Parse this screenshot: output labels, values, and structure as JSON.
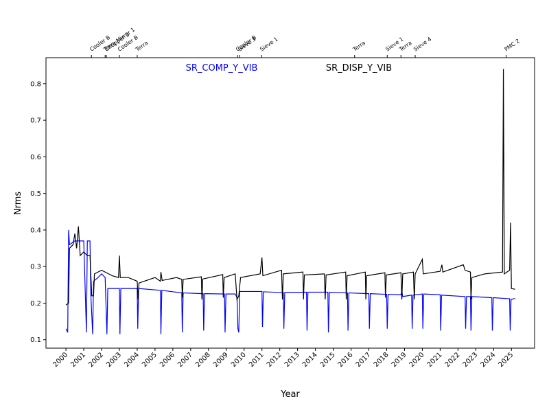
{
  "chart_data": {
    "type": "line",
    "xlabel": "Year",
    "ylabel": "Nrms",
    "xlim": [
      1998.88,
      2026.3
    ],
    "ylim": [
      0.077,
      0.871
    ],
    "xticks": [
      2000,
      2001,
      2002,
      2003,
      2004,
      2005,
      2006,
      2007,
      2008,
      2009,
      2010,
      2011,
      2012,
      2013,
      2014,
      2015,
      2016,
      2017,
      2018,
      2019,
      2020,
      2021,
      2022,
      2023,
      2024,
      2025
    ],
    "yticks": [
      0.1,
      0.2,
      0.3,
      0.4,
      0.5,
      0.6,
      0.7,
      0.8
    ],
    "annotations": [
      {
        "label": "Cooler B",
        "x": 2001.43
      },
      {
        "label": "Terra Mirror 1",
        "x": 2002.2
      },
      {
        "label": "Chopper 3",
        "x": 2002.27
      },
      {
        "label": "Cooler B",
        "x": 2003.0
      },
      {
        "label": "Terra",
        "x": 2004.0
      },
      {
        "label": "Cooler B",
        "x": 2009.63
      },
      {
        "label": "Sieve 3",
        "x": 2009.75
      },
      {
        "label": "Sieve 1",
        "x": 2010.98
      },
      {
        "label": "Terra",
        "x": 2016.2
      },
      {
        "label": "Sieve 1",
        "x": 2018.03
      },
      {
        "label": "Terra",
        "x": 2018.8
      },
      {
        "label": "Sieve 4",
        "x": 2019.6
      },
      {
        "label": "PMC 2",
        "x": 2024.7
      }
    ],
    "series": [
      {
        "name": "SR_COMP_Y_VIB",
        "color": "#0000ff",
        "x": [
          2000.0,
          2000.1,
          2000.15,
          2000.2,
          2000.5,
          2001.0,
          2001.15,
          2001.2,
          2001.35,
          2001.4,
          2001.5,
          2001.55,
          2001.8,
          2002.0,
          2002.2,
          2002.3,
          2002.35,
          2003.0,
          2003.03,
          2003.08,
          2004.0,
          2004.03,
          2004.08,
          2005.3,
          2005.33,
          2005.38,
          2006.5,
          2006.53,
          2006.58,
          2007.7,
          2007.73,
          2007.78,
          2008.9,
          2008.93,
          2008.98,
          2009.5,
          2009.6,
          2009.65,
          2009.7,
          2009.75,
          2011.0,
          2011.03,
          2011.08,
          2012.2,
          2012.23,
          2012.28,
          2013.5,
          2013.53,
          2013.58,
          2014.7,
          2014.73,
          2014.78,
          2015.8,
          2015.83,
          2015.88,
          2017.0,
          2017.03,
          2017.08,
          2018.0,
          2018.03,
          2018.08,
          2018.8,
          2018.85,
          2018.9,
          2019.4,
          2019.43,
          2019.48,
          2020.0,
          2020.03,
          2020.08,
          2021.0,
          2021.03,
          2021.08,
          2022.4,
          2022.43,
          2022.48,
          2022.7,
          2022.73,
          2022.78,
          2023.9,
          2023.93,
          2023.98,
          2024.9,
          2024.93,
          2024.98,
          2025.2
        ],
        "values": [
          0.13,
          0.12,
          0.4,
          0.36,
          0.37,
          0.37,
          0.12,
          0.37,
          0.37,
          0.22,
          0.115,
          0.26,
          0.27,
          0.28,
          0.27,
          0.115,
          0.24,
          0.24,
          0.115,
          0.24,
          0.24,
          0.13,
          0.24,
          0.235,
          0.115,
          0.235,
          0.228,
          0.12,
          0.228,
          0.226,
          0.125,
          0.226,
          0.225,
          0.12,
          0.225,
          0.225,
          0.215,
          0.13,
          0.12,
          0.232,
          0.232,
          0.135,
          0.231,
          0.229,
          0.13,
          0.229,
          0.23,
          0.125,
          0.23,
          0.23,
          0.12,
          0.229,
          0.228,
          0.125,
          0.228,
          0.226,
          0.13,
          0.226,
          0.224,
          0.13,
          0.224,
          0.223,
          0.233,
          0.218,
          0.222,
          0.13,
          0.222,
          0.225,
          0.13,
          0.225,
          0.223,
          0.125,
          0.222,
          0.218,
          0.13,
          0.218,
          0.218,
          0.125,
          0.218,
          0.215,
          0.125,
          0.215,
          0.212,
          0.125,
          0.21,
          0.213
        ]
      },
      {
        "name": "SR_DISP_Y_VIB",
        "color": "#000000",
        "x": [
          2000.0,
          2000.15,
          2000.2,
          2000.4,
          2000.5,
          2000.6,
          2000.7,
          2000.8,
          2001.0,
          2001.2,
          2001.35,
          2001.45,
          2001.55,
          2001.6,
          2002.0,
          2002.4,
          2002.6,
          2002.95,
          2003.0,
          2003.05,
          2003.5,
          2004.0,
          2004.05,
          2004.1,
          2005.0,
          2005.3,
          2005.33,
          2005.4,
          2006.2,
          2006.5,
          2006.53,
          2006.58,
          2007.6,
          2007.63,
          2007.68,
          2008.8,
          2008.83,
          2008.88,
          2009.5,
          2009.6,
          2009.7,
          2009.8,
          2010.9,
          2011.0,
          2011.05,
          2012.1,
          2012.15,
          2012.2,
          2013.3,
          2013.33,
          2013.38,
          2014.5,
          2014.55,
          2014.6,
          2015.7,
          2015.73,
          2015.78,
          2016.8,
          2016.83,
          2016.88,
          2017.9,
          2017.93,
          2017.98,
          2018.8,
          2018.85,
          2018.9,
          2019.5,
          2019.55,
          2019.6,
          2020.0,
          2020.05,
          2021.0,
          2021.1,
          2021.15,
          2022.3,
          2022.4,
          2022.7,
          2022.73,
          2022.78,
          2023.5,
          2024.5,
          2024.55,
          2024.6,
          2024.9,
          2024.95,
          2025.0,
          2025.2
        ],
        "values": [
          0.195,
          0.2,
          0.35,
          0.36,
          0.39,
          0.35,
          0.41,
          0.33,
          0.34,
          0.33,
          0.33,
          0.22,
          0.22,
          0.28,
          0.29,
          0.28,
          0.275,
          0.27,
          0.33,
          0.27,
          0.27,
          0.26,
          0.21,
          0.255,
          0.27,
          0.26,
          0.285,
          0.262,
          0.27,
          0.265,
          0.215,
          0.265,
          0.272,
          0.21,
          0.266,
          0.278,
          0.215,
          0.27,
          0.28,
          0.21,
          0.22,
          0.27,
          0.28,
          0.325,
          0.275,
          0.29,
          0.21,
          0.28,
          0.285,
          0.21,
          0.277,
          0.28,
          0.21,
          0.277,
          0.285,
          0.21,
          0.275,
          0.285,
          0.21,
          0.275,
          0.283,
          0.215,
          0.277,
          0.283,
          0.21,
          0.28,
          0.285,
          0.21,
          0.28,
          0.32,
          0.28,
          0.287,
          0.305,
          0.285,
          0.305,
          0.29,
          0.285,
          0.21,
          0.27,
          0.28,
          0.285,
          0.84,
          0.28,
          0.29,
          0.42,
          0.24,
          0.238
        ]
      }
    ]
  }
}
